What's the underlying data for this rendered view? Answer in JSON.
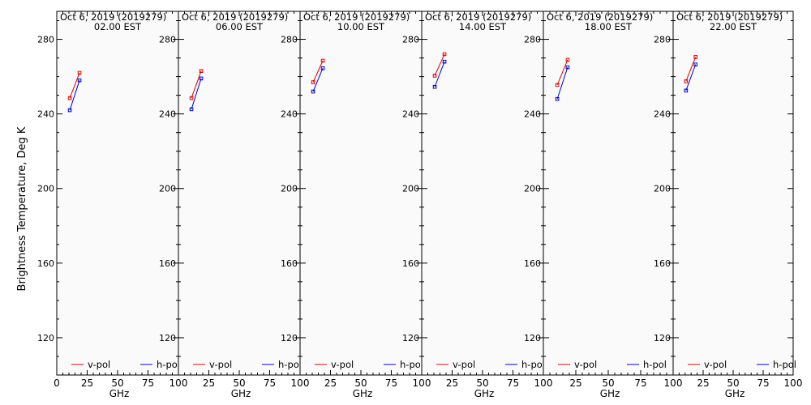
{
  "page": {
    "ylabel": "Brightness Temperature, Deg K"
  },
  "legend": {
    "v_label": "v-pol",
    "h_label": "h-pol"
  },
  "colors": {
    "v": "#e00000",
    "h": "#0000cc",
    "axis": "#000000",
    "panel_bg": "#fafafa"
  },
  "chart_data": [
    {
      "type": "line",
      "title": "Oct  6, 2019 (2019279)",
      "subtitle": "02.00 EST",
      "xlabel": "GHz",
      "ylabel": "",
      "xlim": [
        0,
        100
      ],
      "ylim": [
        100,
        295
      ],
      "xticks": [
        "0",
        "25",
        "50",
        "75",
        "100"
      ],
      "yticks": [
        "120",
        "160",
        "200",
        "240",
        "280"
      ],
      "legend_position": "bottom",
      "grid": false,
      "series": [
        {
          "name": "v-pol",
          "x": [
            10.7,
            18.7
          ],
          "y": [
            248.5,
            262
          ]
        },
        {
          "name": "h-pol",
          "x": [
            10.7,
            18.7
          ],
          "y": [
            242,
            258
          ]
        }
      ]
    },
    {
      "type": "line",
      "title": "Oct  6, 2019 (2019279)",
      "subtitle": "06.00 EST",
      "xlabel": "GHz",
      "ylabel": "",
      "xlim": [
        0,
        100
      ],
      "ylim": [
        100,
        295
      ],
      "xticks": [
        "0",
        "25",
        "50",
        "75",
        "100"
      ],
      "yticks": [
        "120",
        "160",
        "200",
        "240",
        "280"
      ],
      "legend_position": "bottom",
      "grid": false,
      "series": [
        {
          "name": "v-pol",
          "x": [
            10.7,
            18.7
          ],
          "y": [
            248.5,
            263
          ]
        },
        {
          "name": "h-pol",
          "x": [
            10.7,
            18.7
          ],
          "y": [
            242.5,
            259
          ]
        }
      ]
    },
    {
      "type": "line",
      "title": "Oct  6, 2019 (2019279)",
      "subtitle": "10.00 EST",
      "xlabel": "GHz",
      "ylabel": "",
      "xlim": [
        0,
        100
      ],
      "ylim": [
        100,
        295
      ],
      "xticks": [
        "0",
        "25",
        "50",
        "75",
        "100"
      ],
      "yticks": [
        "120",
        "160",
        "200",
        "240",
        "280"
      ],
      "legend_position": "bottom",
      "grid": false,
      "series": [
        {
          "name": "v-pol",
          "x": [
            10.7,
            18.7
          ],
          "y": [
            257,
            268.5
          ]
        },
        {
          "name": "h-pol",
          "x": [
            10.7,
            18.7
          ],
          "y": [
            252,
            264.5
          ]
        }
      ]
    },
    {
      "type": "line",
      "title": "Oct  6, 2019 (2019279)",
      "subtitle": "14.00 EST",
      "xlabel": "GHz",
      "ylabel": "",
      "xlim": [
        0,
        100
      ],
      "ylim": [
        100,
        295
      ],
      "xticks": [
        "0",
        "25",
        "50",
        "75",
        "100"
      ],
      "yticks": [
        "120",
        "160",
        "200",
        "240",
        "280"
      ],
      "legend_position": "bottom",
      "grid": false,
      "series": [
        {
          "name": "v-pol",
          "x": [
            10.7,
            18.7
          ],
          "y": [
            260.5,
            272
          ]
        },
        {
          "name": "h-pol",
          "x": [
            10.7,
            18.7
          ],
          "y": [
            254.5,
            268
          ]
        }
      ]
    },
    {
      "type": "line",
      "title": "Oct  6, 2019 (2019279)",
      "subtitle": "18.00 EST",
      "xlabel": "GHz",
      "ylabel": "",
      "xlim": [
        0,
        100
      ],
      "ylim": [
        100,
        295
      ],
      "xticks": [
        "0",
        "25",
        "50",
        "75",
        "100"
      ],
      "yticks": [
        "120",
        "160",
        "200",
        "240",
        "280"
      ],
      "legend_position": "bottom",
      "grid": false,
      "series": [
        {
          "name": "v-pol",
          "x": [
            10.7,
            18.7
          ],
          "y": [
            255.5,
            269
          ]
        },
        {
          "name": "h-pol",
          "x": [
            10.7,
            18.7
          ],
          "y": [
            248,
            265
          ]
        }
      ]
    },
    {
      "type": "line",
      "title": "Oct  6, 2019 (2019279)",
      "subtitle": "22.00 EST",
      "xlabel": "GHz",
      "ylabel": "",
      "xlim": [
        0,
        100
      ],
      "ylim": [
        100,
        295
      ],
      "xticks": [
        "0",
        "25",
        "50",
        "75",
        "100"
      ],
      "yticks": [
        "120",
        "160",
        "200",
        "240",
        "280"
      ],
      "legend_position": "bottom",
      "grid": false,
      "series": [
        {
          "name": "v-pol",
          "x": [
            10.7,
            18.7
          ],
          "y": [
            257.5,
            270.5
          ]
        },
        {
          "name": "h-pol",
          "x": [
            10.7,
            18.7
          ],
          "y": [
            252.5,
            266.5
          ]
        }
      ]
    }
  ]
}
